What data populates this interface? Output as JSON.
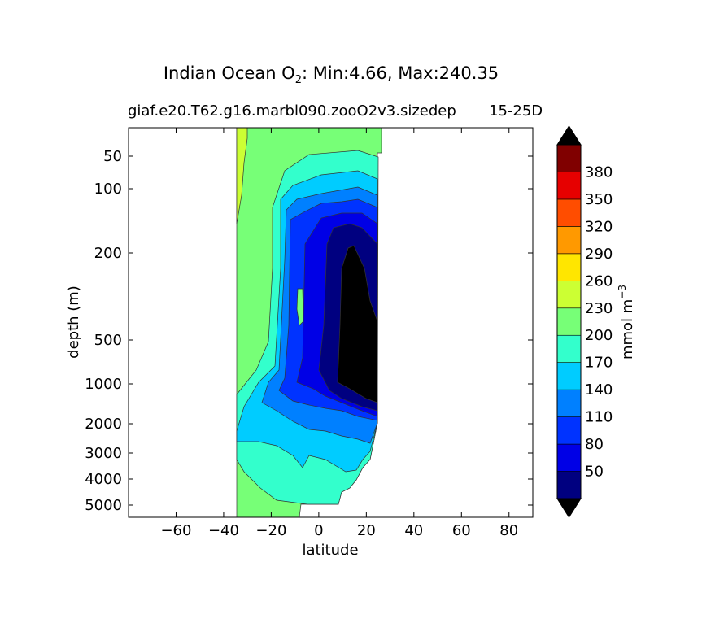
{
  "figure": {
    "title_main": "Indian Ocean O",
    "title_sub": "2",
    "title_rest": ": Min:4.66, Max:240.35",
    "subtitle_left": "giaf.e20.T62.g16.marbl090.zooO2v3.sizedep",
    "subtitle_right": "15-25D"
  },
  "chart_data": {
    "type": "heatmap",
    "subtype": "filled-contour",
    "xlabel": "latitude",
    "ylabel": "depth (m)",
    "xlim": [
      -80,
      90
    ],
    "ylim": [
      5500,
      30
    ],
    "y_scale": "stretched (depth axis non-linear)",
    "x_ticks": [
      -60,
      -40,
      -20,
      0,
      20,
      40,
      60,
      80
    ],
    "x_tick_labels": [
      "−60",
      "−40",
      "−20",
      "0",
      "20",
      "40",
      "60",
      "80"
    ],
    "y_ticks": [
      50,
      100,
      200,
      500,
      1000,
      2000,
      3000,
      4000,
      5000
    ],
    "y_tick_labels": [
      "50",
      "100",
      "200",
      "500",
      "1000",
      "2000",
      "3000",
      "4000",
      "5000"
    ],
    "data_range": {
      "min": 4.66,
      "max": 240.35,
      "lat_extent": [
        -34,
        26
      ]
    },
    "colorbar": {
      "label": "mmol m",
      "label_exponent": "−3",
      "levels": [
        20,
        50,
        80,
        110,
        140,
        170,
        200,
        230,
        260,
        290,
        320,
        350,
        380,
        410
      ],
      "tick_values": [
        50,
        80,
        110,
        140,
        170,
        200,
        230,
        260,
        290,
        320,
        350,
        380
      ],
      "tick_labels": [
        "50",
        "80",
        "110",
        "140",
        "170",
        "200",
        "230",
        "260",
        "290",
        "320",
        "350",
        "380"
      ],
      "colors": [
        "#000080",
        "#0000e6",
        "#0033ff",
        "#0080ff",
        "#00ccff",
        "#33ffcc",
        "#77ff77",
        "#ccff33",
        "#ffe600",
        "#ff9900",
        "#ff4d00",
        "#e60000",
        "#800000"
      ],
      "under_color": "#000000",
      "over_color": "#000000",
      "extend": "both"
    },
    "contour_colors": {
      "band_20_50": "#000080",
      "band_50_80": "#0000e6",
      "band_80_110": "#0033ff",
      "band_110_140": "#0080ff",
      "band_140_170": "#00ccff",
      "band_170_200": "#33ffcc",
      "band_200_230": "#77ff77",
      "band_230_260": "#ccff33",
      "below_20": "#000000"
    }
  }
}
